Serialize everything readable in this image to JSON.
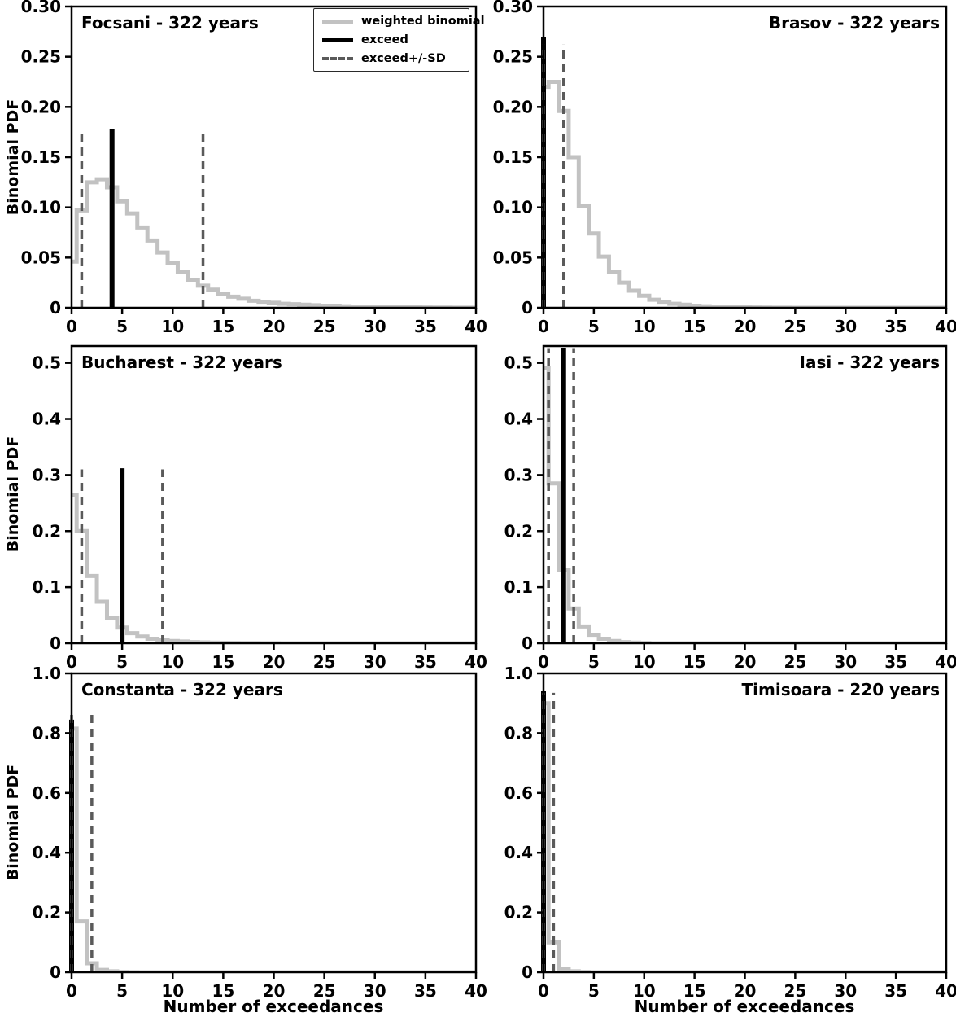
{
  "figure": {
    "xlabel": "Number of exceedances",
    "ylabel": "Binomial PDF",
    "legend": {
      "items": [
        {
          "label": "weighted binomial"
        },
        {
          "label": "exceed"
        },
        {
          "label": "exceed+/-SD"
        }
      ]
    },
    "colors": {
      "binomial_line": "#c2c2c2",
      "exceed_line": "#000000",
      "sd_line": "#5a5a5a"
    }
  },
  "chart_data": [
    {
      "id": "focsani",
      "type": "line",
      "title": "Focsani - 322 years",
      "title_align": "left",
      "xlim": [
        0,
        40
      ],
      "ylim": [
        0,
        0.3
      ],
      "xticks": [
        0,
        5,
        10,
        15,
        20,
        25,
        30,
        35,
        40
      ],
      "yticks": [
        0,
        0.05,
        0.1,
        0.15,
        0.2,
        0.25,
        0.3
      ],
      "ytick_labels": [
        "0",
        "0.05",
        "0.10",
        "0.15",
        "0.20",
        "0.25",
        "0.30"
      ],
      "series": [
        {
          "name": "weighted binomial",
          "style": "step",
          "values": [
            0.046,
            0.097,
            0.125,
            0.128,
            0.12,
            0.106,
            0.094,
            0.08,
            0.067,
            0.055,
            0.045,
            0.036,
            0.028,
            0.022,
            0.018,
            0.014,
            0.011,
            0.009,
            0.007,
            0.006,
            0.005,
            0.004,
            0.0035,
            0.003,
            0.0025,
            0.002,
            0.002,
            0.0015,
            0.0012,
            0.001,
            0.001,
            0.0008,
            0.0006,
            0.0005,
            0.0004,
            0.0003,
            0.0002,
            0.0002,
            0.0001,
            0.0001,
            0
          ]
        },
        {
          "name": "exceed",
          "style": "vline",
          "x": 4,
          "height": 0.178
        },
        {
          "name": "exceed-SD",
          "style": "vline-dashed",
          "x": 1,
          "height": 0.173
        },
        {
          "name": "exceed+SD",
          "style": "vline-dashed",
          "x": 13,
          "height": 0.173
        }
      ]
    },
    {
      "id": "brasov",
      "type": "line",
      "title": "Brasov - 322 years",
      "title_align": "right",
      "xlim": [
        0,
        40
      ],
      "ylim": [
        0,
        0.3
      ],
      "xticks": [
        0,
        5,
        10,
        15,
        20,
        25,
        30,
        35,
        40
      ],
      "yticks": [
        0,
        0.05,
        0.1,
        0.15,
        0.2,
        0.25,
        0.3
      ],
      "ytick_labels": [
        "0",
        "0.05",
        "0.10",
        "0.15",
        "0.20",
        "0.25",
        "0.30"
      ],
      "series": [
        {
          "name": "weighted binomial",
          "style": "step",
          "values": [
            0.22,
            0.225,
            0.196,
            0.15,
            0.101,
            0.074,
            0.051,
            0.036,
            0.025,
            0.017,
            0.012,
            0.008,
            0.006,
            0.004,
            0.003,
            0.002,
            0.0015,
            0.001,
            0.0008,
            0.0005,
            0.0004,
            0.0003,
            0.0002,
            0.0001,
            0.0001,
            0
          ]
        },
        {
          "name": "exceed",
          "style": "vline",
          "x": 0,
          "height": 0.27
        },
        {
          "name": "exceed-SD",
          "style": "vline-dashed",
          "x": 0,
          "height": 0.262
        },
        {
          "name": "exceed+SD",
          "style": "vline-dashed",
          "x": 2,
          "height": 0.262
        }
      ]
    },
    {
      "id": "bucharest",
      "type": "line",
      "title": "Bucharest - 322 years",
      "title_align": "left",
      "xlim": [
        0,
        40
      ],
      "ylim": [
        0,
        0.53
      ],
      "xticks": [
        0,
        5,
        10,
        15,
        20,
        25,
        30,
        35,
        40
      ],
      "yticks": [
        0,
        0.1,
        0.2,
        0.3,
        0.4,
        0.5
      ],
      "ytick_labels": [
        "0",
        "0.1",
        "0.2",
        "0.3",
        "0.4",
        "0.5"
      ],
      "series": [
        {
          "name": "weighted binomial",
          "style": "step",
          "values": [
            0.265,
            0.2,
            0.12,
            0.074,
            0.045,
            0.028,
            0.018,
            0.012,
            0.008,
            0.006,
            0.004,
            0.003,
            0.002,
            0.0015,
            0.001,
            0.0008,
            0.0006,
            0.0004,
            0.0003,
            0.0002,
            0.0001,
            0
          ]
        },
        {
          "name": "exceed",
          "style": "vline",
          "x": 5,
          "height": 0.312
        },
        {
          "name": "exceed-SD",
          "style": "vline-dashed",
          "x": 1,
          "height": 0.31
        },
        {
          "name": "exceed+SD",
          "style": "vline-dashed",
          "x": 9,
          "height": 0.31
        }
      ]
    },
    {
      "id": "iasi",
      "type": "line",
      "title": "Iasi - 322 years",
      "title_align": "right",
      "xlim": [
        0,
        40
      ],
      "ylim": [
        0,
        0.53
      ],
      "xticks": [
        0,
        5,
        10,
        15,
        20,
        25,
        30,
        35,
        40
      ],
      "yticks": [
        0,
        0.1,
        0.2,
        0.3,
        0.4,
        0.5
      ],
      "ytick_labels": [
        "0",
        "0.1",
        "0.2",
        "0.3",
        "0.4",
        "0.5"
      ],
      "series": [
        {
          "name": "weighted binomial",
          "style": "step",
          "values": [
            0.49,
            0.285,
            0.13,
            0.062,
            0.03,
            0.015,
            0.008,
            0.004,
            0.002,
            0.001,
            0.0005,
            0
          ]
        },
        {
          "name": "exceed",
          "style": "vline",
          "x": 2,
          "height": 0.527
        },
        {
          "name": "exceed-SD",
          "style": "vline-dashed",
          "x": 0.5,
          "height": 0.525
        },
        {
          "name": "exceed+SD",
          "style": "vline-dashed",
          "x": 3,
          "height": 0.525
        }
      ]
    },
    {
      "id": "constanta",
      "type": "line",
      "title": "Constanta - 322 years",
      "title_align": "left",
      "xlim": [
        0,
        40
      ],
      "ylim": [
        0,
        1.0
      ],
      "xticks": [
        0,
        5,
        10,
        15,
        20,
        25,
        30,
        35,
        40
      ],
      "yticks": [
        0,
        0.2,
        0.4,
        0.6,
        0.8,
        1.0
      ],
      "ytick_labels": [
        "0",
        "0.2",
        "0.4",
        "0.6",
        "0.8",
        "1.0"
      ],
      "series": [
        {
          "name": "weighted binomial",
          "style": "step",
          "values": [
            0.815,
            0.17,
            0.03,
            0.008,
            0.003,
            0.001,
            0.0005,
            0
          ]
        },
        {
          "name": "exceed",
          "style": "vline",
          "x": 0,
          "height": 0.845
        },
        {
          "name": "exceed-SD",
          "style": "vline-dashed",
          "x": 0,
          "height": 0.88
        },
        {
          "name": "exceed+SD",
          "style": "vline-dashed",
          "x": 2,
          "height": 0.88
        }
      ]
    },
    {
      "id": "timisoara",
      "type": "line",
      "title": "Timisoara - 220 years",
      "title_align": "right",
      "xlim": [
        0,
        40
      ],
      "ylim": [
        0,
        1.0
      ],
      "xticks": [
        0,
        5,
        10,
        15,
        20,
        25,
        30,
        35,
        40
      ],
      "yticks": [
        0,
        0.2,
        0.4,
        0.6,
        0.8,
        1.0
      ],
      "ytick_labels": [
        "0",
        "0.2",
        "0.4",
        "0.6",
        "0.8",
        "1.0"
      ],
      "series": [
        {
          "name": "weighted binomial",
          "style": "step",
          "values": [
            0.9,
            0.1,
            0.012,
            0.003,
            0.001,
            0
          ]
        },
        {
          "name": "exceed",
          "style": "vline",
          "x": 0,
          "height": 0.94
        },
        {
          "name": "exceed-SD",
          "style": "vline-dashed",
          "x": 0,
          "height": 0.935
        },
        {
          "name": "exceed+SD",
          "style": "vline-dashed",
          "x": 1,
          "height": 0.935
        }
      ]
    }
  ]
}
